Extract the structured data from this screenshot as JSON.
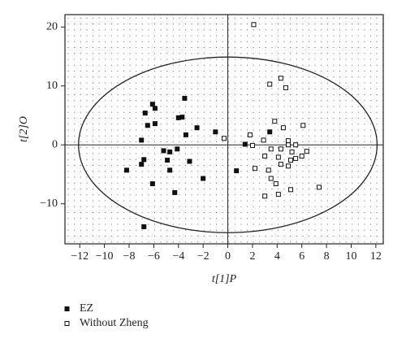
{
  "chart_data": {
    "type": "scatter",
    "x_label": "t[1]P",
    "y_label": "t[2]O",
    "xlim": [
      -13.2,
      12.6
    ],
    "ylim": [
      -16.8,
      22.1
    ],
    "xticks": [
      {
        "value": -12,
        "label": "−12"
      },
      {
        "value": -10,
        "label": "−10"
      },
      {
        "value": -8,
        "label": "−8"
      },
      {
        "value": -6,
        "label": "−6"
      },
      {
        "value": -4,
        "label": "−4"
      },
      {
        "value": -2,
        "label": "−2"
      },
      0,
      2,
      4,
      6,
      8,
      10,
      12
    ],
    "yticks": [
      {
        "value": -10,
        "label": "−10"
      },
      0,
      10,
      20
    ],
    "grid": true,
    "ellipse_radii": [
      12.1,
      14.9
    ],
    "series": [
      {
        "name": "EZ",
        "color": "#111111",
        "marker": "filled-square",
        "x": [
          -3.5,
          -6.1,
          -5.9,
          -6.7,
          -3.7,
          -4.0,
          -2.5,
          -5.9,
          -6.5,
          -1.0,
          -3.4,
          -7.0,
          1.4,
          3.4,
          -4.1,
          -5.2,
          -4.7,
          -6.8,
          -3.1,
          -4.9,
          -7.0,
          -4.7,
          -8.2,
          0.7,
          -2.0,
          -6.1,
          -4.3,
          -6.8
        ],
        "y": [
          7.9,
          6.9,
          6.2,
          5.4,
          4.7,
          4.6,
          2.9,
          3.6,
          3.3,
          2.2,
          1.7,
          0.8,
          0.1,
          2.2,
          -0.7,
          -1.0,
          -1.2,
          -2.5,
          -2.8,
          -2.6,
          -3.3,
          -4.3,
          -4.3,
          -4.4,
          -5.7,
          -6.6,
          -8.1,
          -13.9
        ]
      },
      {
        "name": "Without Zheng",
        "color": "#111111",
        "marker": "open-square",
        "x": [
          2.1,
          4.3,
          3.4,
          4.7,
          3.8,
          4.5,
          6.1,
          1.8,
          2.9,
          4.9,
          4.9,
          2.0,
          3.5,
          4.3,
          5.5,
          5.2,
          6.4,
          3.0,
          4.1,
          6.0,
          5.5,
          5.1,
          4.3,
          2.2,
          3.3,
          4.9,
          3.5,
          3.9,
          5.1,
          4.1,
          3.0,
          7.4,
          -0.3
        ],
        "y": [
          20.4,
          11.3,
          10.3,
          9.7,
          4.0,
          2.9,
          3.3,
          1.7,
          0.8,
          0.7,
          0.0,
          -0.1,
          -0.7,
          -0.7,
          0.0,
          -1.2,
          -1.1,
          -1.9,
          -2.1,
          -1.9,
          -2.3,
          -2.6,
          -3.3,
          -4.0,
          -4.3,
          -3.6,
          -5.7,
          -6.6,
          -7.6,
          -8.4,
          -8.7,
          -7.2,
          1.1
        ]
      }
    ]
  }
}
